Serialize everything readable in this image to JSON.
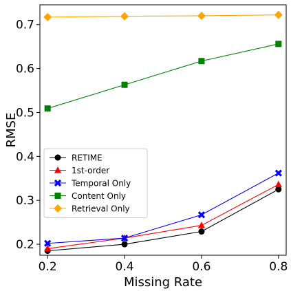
{
  "chart_data": {
    "type": "line",
    "x": [
      0.2,
      0.4,
      0.6,
      0.8
    ],
    "x_ticks": [
      "0.2",
      "0.4",
      "0.6",
      "0.8"
    ],
    "y_ticks": [
      "0.2",
      "0.3",
      "0.4",
      "0.5",
      "0.6",
      "0.7"
    ],
    "xlabel": "Missing Rate",
    "ylabel": "RMSE",
    "xlim": [
      0.18,
      0.82
    ],
    "ylim": [
      0.175,
      0.745
    ],
    "grid": false,
    "legend_position": "lower-left",
    "series": [
      {
        "name": "RETIME",
        "values": [
          0.185,
          0.2,
          0.229,
          0.325
        ],
        "color": "#000000",
        "marker": "circle"
      },
      {
        "name": "1st-order",
        "values": [
          0.19,
          0.214,
          0.243,
          0.336
        ],
        "color": "#ff0000",
        "marker": "triangle"
      },
      {
        "name": "Temporal Only",
        "values": [
          0.202,
          0.214,
          0.267,
          0.362
        ],
        "color": "#0000ff",
        "marker": "x"
      },
      {
        "name": "Content Only",
        "values": [
          0.509,
          0.563,
          0.617,
          0.656
        ],
        "color": "#008000",
        "marker": "square"
      },
      {
        "name": "Retrieval Only",
        "values": [
          0.717,
          0.719,
          0.72,
          0.722
        ],
        "color": "#ffa500",
        "marker": "diamond"
      }
    ]
  }
}
